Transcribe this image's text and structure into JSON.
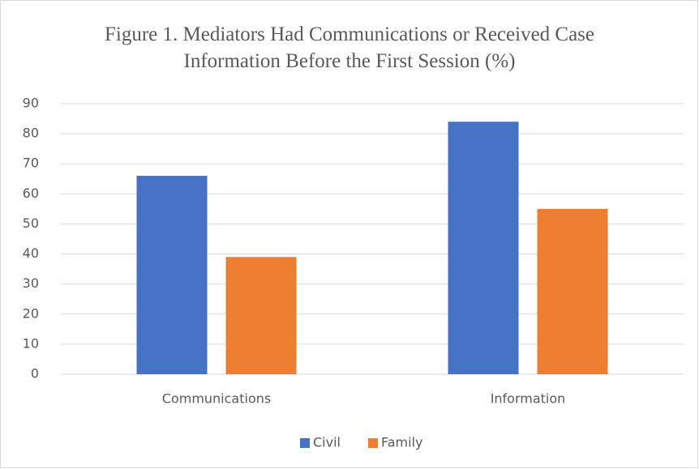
{
  "chart_data": {
    "type": "bar",
    "title": "Figure 1. Mediators Had Communications or Received Case Information Before the First Session (%)",
    "categories": [
      "Communications",
      "Information"
    ],
    "series": [
      {
        "name": "Civil",
        "color": "#4472c4",
        "values": [
          66,
          84
        ]
      },
      {
        "name": "Family",
        "color": "#ed7d31",
        "values": [
          39,
          55
        ]
      }
    ],
    "ylim": [
      0,
      90
    ],
    "yticks": [
      0,
      10,
      20,
      30,
      40,
      50,
      60,
      70,
      80,
      90
    ],
    "grid": true,
    "legend": "bottom"
  }
}
